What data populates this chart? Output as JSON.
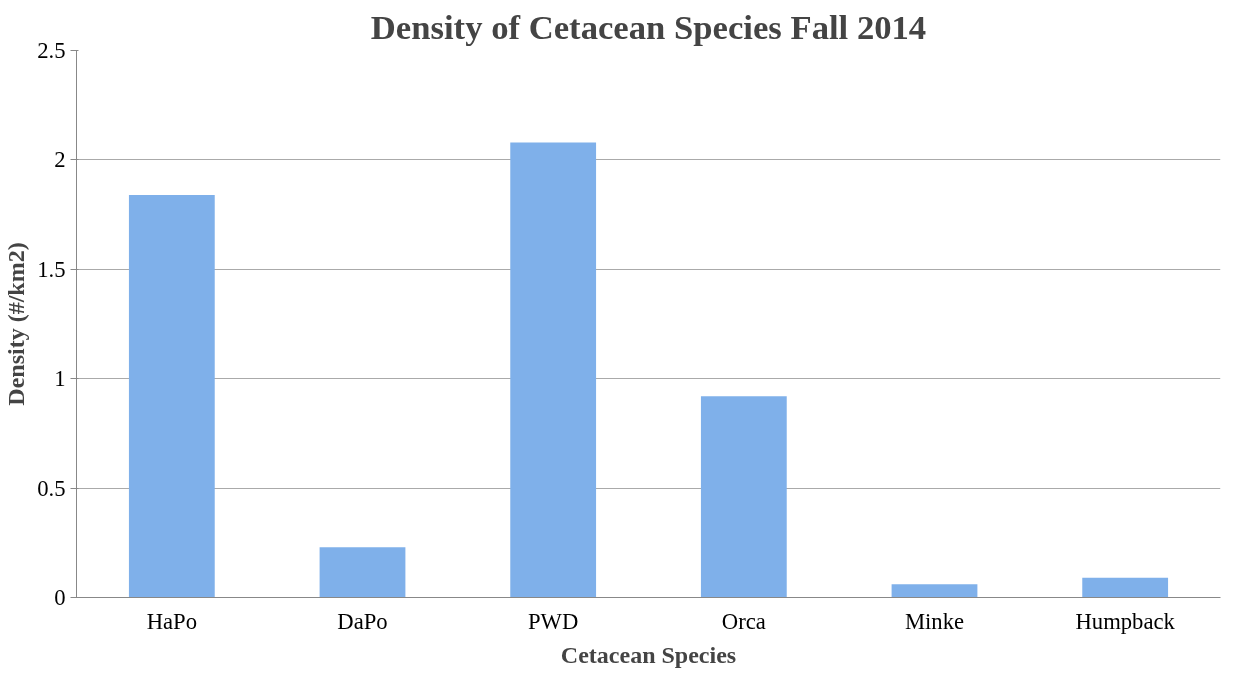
{
  "chart_data": {
    "type": "bar",
    "title": "Density of Cetacean Species Fall 2014",
    "xlabel": "Cetacean Species",
    "ylabel": "Density (#/km2)",
    "categories": [
      "HaPo",
      "DaPo",
      "PWD",
      "Orca",
      "Minke",
      "Humpback"
    ],
    "values": [
      1.84,
      0.23,
      2.08,
      0.92,
      0.06,
      0.09
    ],
    "color": "#7fb0ea",
    "ylim": [
      0,
      2.5
    ],
    "yticks": [
      0,
      0.5,
      1,
      1.5,
      2,
      2.5
    ],
    "grid": "y"
  }
}
